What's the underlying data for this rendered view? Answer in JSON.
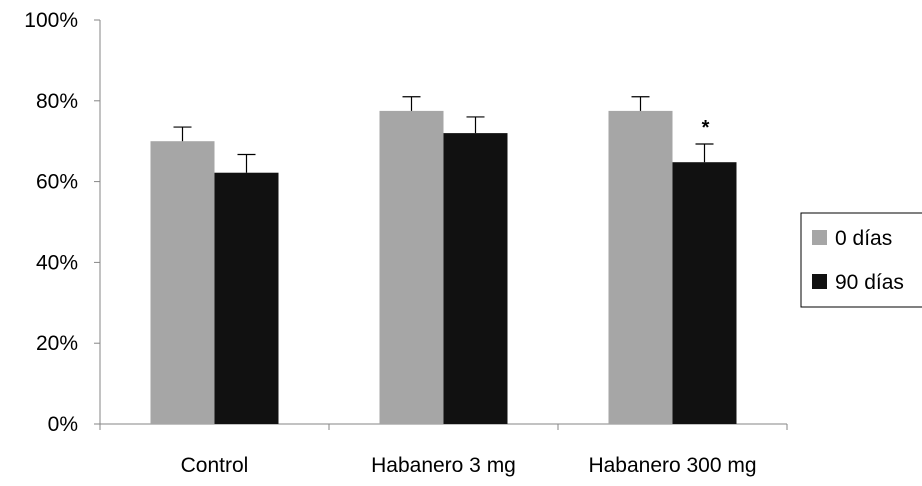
{
  "chart_data": {
    "type": "bar",
    "categories": [
      "Control",
      "Habanero 3 mg",
      "Habanero 300 mg"
    ],
    "series": [
      {
        "name": "0 días",
        "color": "#a6a6a6",
        "values": [
          70,
          77.5,
          77.5
        ],
        "errors": [
          3.5,
          3.5,
          3.5
        ]
      },
      {
        "name": "90 días",
        "color": "#111111",
        "values": [
          62.2,
          72,
          64.8
        ],
        "errors": [
          4.5,
          4,
          4.5
        ]
      }
    ],
    "ylim": [
      0,
      100
    ],
    "yticks": [
      0,
      20,
      40,
      60,
      80,
      100
    ],
    "ytick_labels": [
      "0%",
      "20%",
      "40%",
      "60%",
      "80%",
      "100%"
    ],
    "grid": false,
    "legend_position": "right",
    "annotations": [
      {
        "text": "*",
        "category": "Habanero 300 mg",
        "series": "90 días"
      }
    ],
    "title": "",
    "xlabel": "",
    "ylabel": ""
  }
}
